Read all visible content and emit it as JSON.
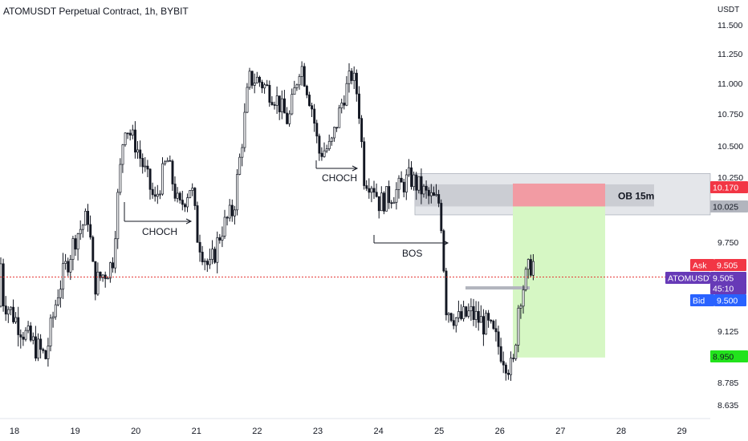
{
  "header": {
    "title": "ATOMUSDT Perpetual Contract, 1h, BYBIT"
  },
  "colors": {
    "up": "#131722",
    "down": "#131722",
    "up_body": "#ffffff",
    "zone_fill": "#e4e6ea",
    "zone_border": "#9aa0ab",
    "ob_fill": "#c8cad0",
    "stop_fill": "#f29ba3",
    "target_fill": "#d6f7c4",
    "price_line": "#e53935",
    "ask": "#f23645",
    "bid": "#2962ff",
    "symbol": "#673ab7",
    "tag_red": "#f23645",
    "tag_gray": "#b2b5be",
    "tag_green": "#22e31c"
  },
  "chart_data": {
    "type": "candlestick",
    "title": "ATOMUSDT Perpetual Contract, 1h, BYBIT",
    "y_unit": "USDT",
    "y_ticks": [
      "11.500",
      "11.250",
      "11.000",
      "10.750",
      "10.500",
      "10.250",
      "10.025",
      "9.750",
      "9.505",
      "9.125",
      "8.950",
      "8.785",
      "8.635"
    ],
    "x_ticks": [
      "18",
      "19",
      "20",
      "21",
      "22",
      "23",
      "24",
      "25",
      "26",
      "27",
      "28",
      "29"
    ],
    "close_path": [
      [
        "18",
        9.35
      ],
      [
        "18",
        9.08
      ],
      [
        "18.5",
        8.95
      ],
      [
        "18.7",
        9.4
      ],
      [
        "19",
        9.8
      ],
      [
        "19.2",
        9.95
      ],
      [
        "19.3",
        9.45
      ],
      [
        "19.6",
        9.6
      ],
      [
        "19.8",
        10.7
      ],
      [
        "20",
        10.5
      ],
      [
        "20.3",
        10.05
      ],
      [
        "20.5",
        10.4
      ],
      [
        "20.7",
        10.0
      ],
      [
        "20.9",
        10.2
      ],
      [
        "21",
        9.8
      ],
      [
        "21.2",
        9.55
      ],
      [
        "21.4",
        9.85
      ],
      [
        "21.6",
        10.0
      ],
      [
        "21.75",
        10.6
      ],
      [
        "21.85",
        11.05
      ],
      [
        "22",
        11.05
      ],
      [
        "22.3",
        10.9
      ],
      [
        "22.5",
        10.7
      ],
      [
        "22.7",
        11.2
      ],
      [
        "22.9",
        10.8
      ],
      [
        "23",
        10.45
      ],
      [
        "23.2",
        10.5
      ],
      [
        "23.4",
        10.9
      ],
      [
        "23.55",
        11.1
      ],
      [
        "23.65",
        10.9
      ],
      [
        "23.75",
        10.25
      ],
      [
        "23.9",
        10.2
      ],
      [
        "24",
        10.05
      ],
      [
        "24.3",
        10.15
      ],
      [
        "24.5",
        10.25
      ],
      [
        "24.8",
        10.1
      ],
      [
        "25",
        10.05
      ],
      [
        "25.1",
        9.3
      ],
      [
        "25.3",
        9.2
      ],
      [
        "25.5",
        9.25
      ],
      [
        "25.8",
        9.15
      ],
      [
        "26",
        9.0
      ],
      [
        "26.2",
        8.85
      ],
      [
        "26.3",
        9.35
      ],
      [
        "26.5",
        9.6
      ]
    ],
    "annotations": [
      {
        "text": "CHOCH"
      },
      {
        "text": "CHOCH"
      },
      {
        "text": "BOS"
      },
      {
        "text": "OB 15m"
      }
    ],
    "ob_zone": [
      10.025,
      10.17
    ],
    "htf_zone": [
      9.96,
      10.28
    ],
    "position": {
      "entry": 10.025,
      "stop": 10.17,
      "target": 8.95
    },
    "last_price": 9.505,
    "grid": false,
    "legend": "none"
  },
  "tags": {
    "usdt": "USDT",
    "stop": "10.170",
    "ob": "10.025",
    "ask_label": "Ask",
    "ask_value": "9.505",
    "symbol_label": "ATOMUSDT",
    "symbol_value": "9.505",
    "countdown": "45:10",
    "bid_label": "Bid",
    "bid_value": "9.500",
    "target": "8.950"
  }
}
